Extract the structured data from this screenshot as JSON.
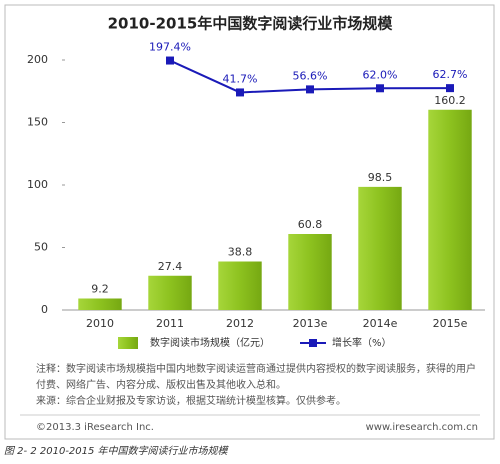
{
  "chart_data": {
    "type": "bar",
    "title": "2010-2015年中国数字阅读行业市场规模",
    "categories": [
      "2010",
      "2011",
      "2012",
      "2013e",
      "2014e",
      "2015e"
    ],
    "series": [
      {
        "name": "数字阅读市场规模（亿元）",
        "color": "#8dc21f",
        "values": [
          9.2,
          27.4,
          38.8,
          60.8,
          98.5,
          160.2
        ]
      },
      {
        "name": "增长率（%）",
        "color": "#1a1ab8",
        "axis": "y2",
        "type": "line",
        "values": [
          null,
          197.4,
          41.7,
          56.6,
          62.0,
          62.7
        ],
        "value_labels": [
          null,
          "197.4%",
          "41.7%",
          "56.6%",
          "62.0%",
          "62.7%"
        ]
      }
    ],
    "ylim": [
      0,
      200
    ],
    "yticks": [
      0,
      50,
      100,
      150,
      200
    ],
    "y2lim": [
      -1020,
      200
    ]
  },
  "notes": {
    "annotation": "注释：数字阅读市场规模指中国内地数字阅读运营商通过提供内容授权的数字阅读服务，获得的用户付费、网络广告、内容分成、版权出售及其他收入总和。",
    "source": "来源：综合企业财报及专家访谈，根据艾瑞统计模型核算。仅供参考。"
  },
  "footer": {
    "copyright": "©2013.3 iResearch Inc.",
    "url": "www.iresearch.com.cn"
  },
  "caption": "图 2- 2 2010-2015 年中国数字阅读行业市场规模"
}
